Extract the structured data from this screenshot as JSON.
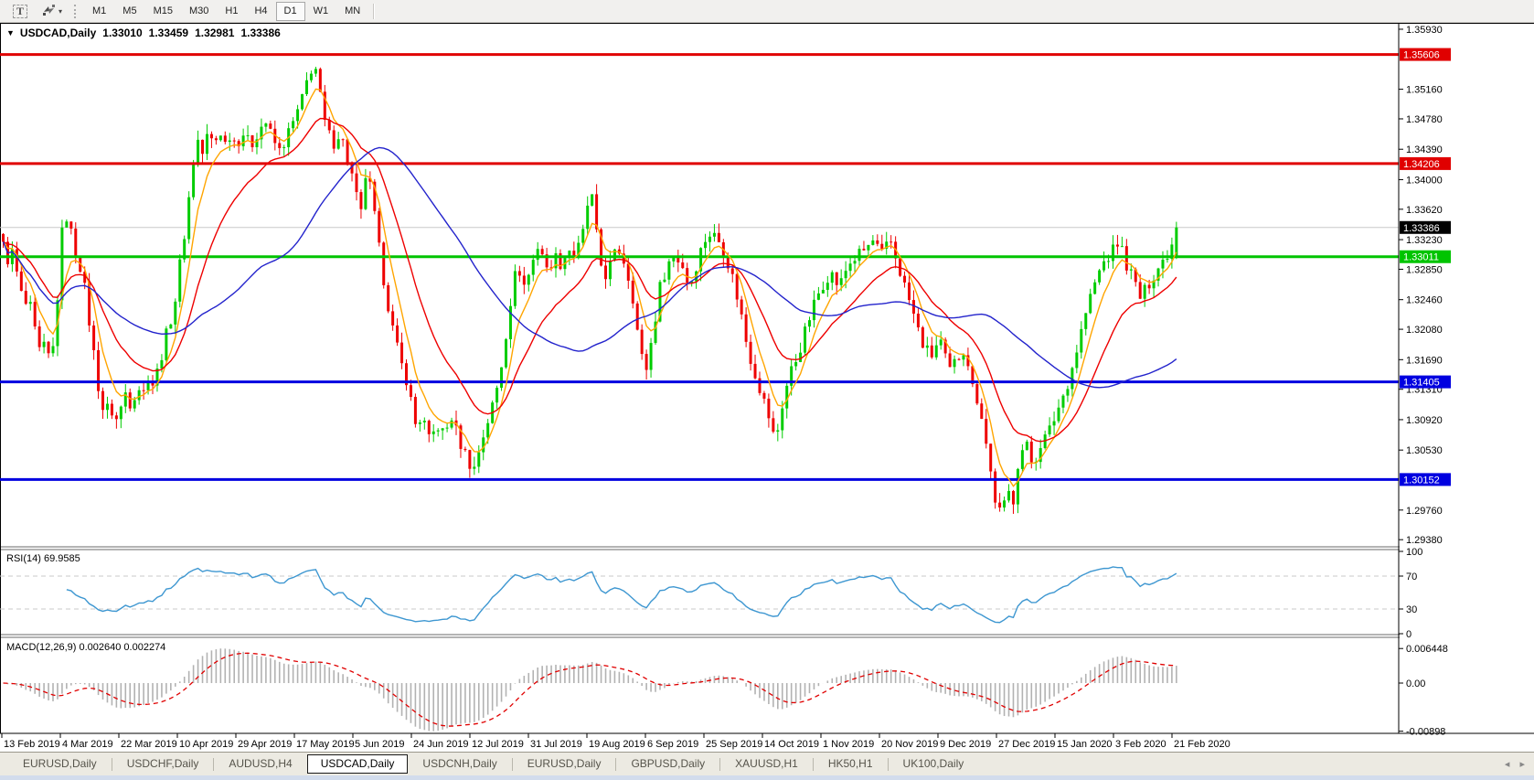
{
  "toolbar": {
    "text_tool_label": "T",
    "timeframes": [
      "M1",
      "M5",
      "M15",
      "M30",
      "H1",
      "H4",
      "D1",
      "W1",
      "MN"
    ],
    "active_timeframe": "D1"
  },
  "chart_window": {
    "title": {
      "dropdown_icon": "▼",
      "symbol": "USDCAD,Daily",
      "open": "1.33010",
      "high": "1.33459",
      "low": "1.32981",
      "close": "1.33386"
    }
  },
  "rsi_panel": {
    "label": "RSI(14)",
    "value": "69.9585",
    "axis_ticks": [
      "100",
      "70",
      "30",
      "0"
    ]
  },
  "macd_panel": {
    "label": "MACD(12,26,9)",
    "values": "0.002640 0.002274",
    "axis_ticks": [
      "0.006448",
      "0.00",
      "-0.00898"
    ]
  },
  "bottom_tabs": {
    "tabs": [
      "EURUSD,Daily",
      "USDCHF,Daily",
      "AUDUSD,H4",
      "USDCAD,Daily",
      "USDCNH,Daily",
      "EURUSD,Daily",
      "GBPUSD,Daily",
      "XAUUSD,H1",
      "HK50,H1",
      "UK100,Daily"
    ],
    "active_index": 3,
    "scroll_left": "◂",
    "scroll_right": "▸"
  },
  "colors": {
    "candle_up": "#00CC00",
    "candle_down": "#EE0000",
    "ma_fast": "#FFA500",
    "ma_medium": "#EE0000",
    "ma_slow": "#2323CC",
    "rsi_line": "#3E97D1",
    "rsi_levels": "#C8C8C8",
    "macd_histogram": "#B2B2B2",
    "macd_signal": "#E00000",
    "current_price_line": "#C8C8C8",
    "axis_text": "#000000"
  },
  "chart_data": {
    "type": "candlestick",
    "symbol": "USDCAD",
    "timeframe": "Daily",
    "candle_count": 260,
    "price_range": [
      1.293,
      1.36
    ],
    "last_candle": {
      "open": 1.3301,
      "high": 1.33459,
      "low": 1.32981,
      "close": 1.33386
    },
    "current_price": {
      "price": 1.33386,
      "label": "1.33386",
      "tag_color": "#000000"
    },
    "price_axis_ticks": [
      "1.35930",
      "1.35160",
      "1.34780",
      "1.34390",
      "1.34000",
      "1.33620",
      "1.33230",
      "1.32850",
      "1.32460",
      "1.32080",
      "1.31690",
      "1.31310",
      "1.30920",
      "1.30530",
      "1.29760",
      "1.29380"
    ],
    "horizontal_lines": [
      {
        "price": 1.35606,
        "label": "1.35606",
        "color": "#E00000"
      },
      {
        "price": 1.34206,
        "label": "1.34206",
        "color": "#E00000"
      },
      {
        "price": 1.33011,
        "label": "1.33011",
        "color": "#00C400"
      },
      {
        "price": 1.31405,
        "label": "1.31405",
        "color": "#0000E0"
      },
      {
        "price": 1.30152,
        "label": "1.30152",
        "color": "#0000E0"
      }
    ],
    "moving_averages": [
      {
        "name": "fast",
        "type": "ema",
        "period": 6,
        "color": "#FFA500"
      },
      {
        "name": "medium",
        "type": "ema",
        "period": 18,
        "color": "#EE0000"
      },
      {
        "name": "slow",
        "type": "sma",
        "period": 45,
        "color": "#2323CC"
      }
    ],
    "x_axis_dates": [
      "13 Feb 2019",
      "4 Mar 2019",
      "22 Mar 2019",
      "10 Apr 2019",
      "29 Apr 2019",
      "17 May 2019",
      "5 Jun 2019",
      "24 Jun 2019",
      "12 Jul 2019",
      "31 Jul 2019",
      "19 Aug 2019",
      "6 Sep 2019",
      "25 Sep 2019",
      "14 Oct 2019",
      "1 Nov 2019",
      "20 Nov 2019",
      "9 Dec 2019",
      "27 Dec 2019",
      "15 Jan 2020",
      "3 Feb 2020",
      "21 Feb 2020"
    ],
    "rsi": {
      "period": 14,
      "last_value": 69.9585,
      "levels": [
        70,
        30
      ],
      "scale": [
        0,
        100
      ]
    },
    "macd": {
      "fast": 12,
      "slow": 26,
      "signal": 9,
      "last_macd": 0.00264,
      "last_signal": 0.002274,
      "axis_max": 0.006448,
      "axis_min": -0.00898
    },
    "price_waypoints": [
      [
        2,
        1.332
      ],
      [
        8,
        1.3298
      ],
      [
        14,
        1.3306
      ],
      [
        20,
        1.327
      ],
      [
        26,
        1.3238
      ],
      [
        32,
        1.3242
      ],
      [
        38,
        1.3205
      ],
      [
        44,
        1.3175
      ],
      [
        50,
        1.3188
      ],
      [
        56,
        1.3158
      ],
      [
        62,
        1.3235
      ],
      [
        68,
        1.3332
      ],
      [
        74,
        1.3358
      ],
      [
        78,
        1.333
      ],
      [
        84,
        1.3302
      ],
      [
        90,
        1.3282
      ],
      [
        96,
        1.3232
      ],
      [
        102,
        1.3182
      ],
      [
        108,
        1.3132
      ],
      [
        114,
        1.3098
      ],
      [
        120,
        1.3112
      ],
      [
        126,
        1.3088
      ],
      [
        132,
        1.3106
      ],
      [
        138,
        1.313
      ],
      [
        144,
        1.3108
      ],
      [
        150,
        1.314
      ],
      [
        156,
        1.3122
      ],
      [
        162,
        1.315
      ],
      [
        168,
        1.3136
      ],
      [
        174,
        1.3162
      ],
      [
        180,
        1.3192
      ],
      [
        186,
        1.3218
      ],
      [
        192,
        1.3248
      ],
      [
        198,
        1.3302
      ],
      [
        204,
        1.3348
      ],
      [
        210,
        1.3412
      ],
      [
        216,
        1.3452
      ],
      [
        222,
        1.3432
      ],
      [
        228,
        1.3462
      ],
      [
        234,
        1.3442
      ],
      [
        240,
        1.3466
      ],
      [
        246,
        1.3446
      ],
      [
        252,
        1.346
      ],
      [
        258,
        1.3446
      ],
      [
        266,
        1.346
      ],
      [
        274,
        1.3442
      ],
      [
        282,
        1.3462
      ],
      [
        290,
        1.3476
      ],
      [
        298,
        1.3452
      ],
      [
        306,
        1.3436
      ],
      [
        314,
        1.3456
      ],
      [
        322,
        1.3476
      ],
      [
        330,
        1.35
      ],
      [
        338,
        1.3536
      ],
      [
        344,
        1.3552
      ],
      [
        350,
        1.3508
      ],
      [
        356,
        1.3468
      ],
      [
        364,
        1.3446
      ],
      [
        372,
        1.3462
      ],
      [
        380,
        1.3426
      ],
      [
        388,
        1.3392
      ],
      [
        394,
        1.3346
      ],
      [
        400,
        1.3406
      ],
      [
        406,
        1.3386
      ],
      [
        414,
        1.3316
      ],
      [
        422,
        1.3256
      ],
      [
        430,
        1.3206
      ],
      [
        438,
        1.3166
      ],
      [
        446,
        1.314
      ],
      [
        454,
        1.3086
      ],
      [
        462,
        1.3096
      ],
      [
        470,
        1.3062
      ],
      [
        478,
        1.3086
      ],
      [
        486,
        1.3072
      ],
      [
        494,
        1.3096
      ],
      [
        502,
        1.3066
      ],
      [
        510,
        1.3046
      ],
      [
        518,
        1.3026
      ],
      [
        526,
        1.3062
      ],
      [
        534,
        1.3092
      ],
      [
        542,
        1.3122
      ],
      [
        550,
        1.3172
      ],
      [
        558,
        1.3242
      ],
      [
        566,
        1.3292
      ],
      [
        574,
        1.3262
      ],
      [
        582,
        1.3292
      ],
      [
        590,
        1.3322
      ],
      [
        598,
        1.3282
      ],
      [
        606,
        1.3302
      ],
      [
        614,
        1.3292
      ],
      [
        622,
        1.3312
      ],
      [
        630,
        1.3302
      ],
      [
        638,
        1.3332
      ],
      [
        646,
        1.3392
      ],
      [
        652,
        1.3332
      ],
      [
        660,
        1.3272
      ],
      [
        668,
        1.3292
      ],
      [
        676,
        1.3312
      ],
      [
        684,
        1.3292
      ],
      [
        692,
        1.3252
      ],
      [
        700,
        1.3182
      ],
      [
        706,
        1.3152
      ],
      [
        714,
        1.3202
      ],
      [
        722,
        1.3262
      ],
      [
        730,
        1.3292
      ],
      [
        738,
        1.3302
      ],
      [
        746,
        1.3292
      ],
      [
        754,
        1.3262
      ],
      [
        762,
        1.3292
      ],
      [
        770,
        1.3322
      ],
      [
        778,
        1.3332
      ],
      [
        786,
        1.3322
      ],
      [
        794,
        1.3302
      ],
      [
        802,
        1.3272
      ],
      [
        810,
        1.3232
      ],
      [
        818,
        1.3182
      ],
      [
        826,
        1.3152
      ],
      [
        834,
        1.3122
      ],
      [
        842,
        1.3092
      ],
      [
        848,
        1.3062
      ],
      [
        856,
        1.3112
      ],
      [
        864,
        1.3152
      ],
      [
        872,
        1.3172
      ],
      [
        880,
        1.3202
      ],
      [
        888,
        1.3232
      ],
      [
        898,
        1.3262
      ],
      [
        908,
        1.3282
      ],
      [
        918,
        1.3262
      ],
      [
        928,
        1.3292
      ],
      [
        938,
        1.3302
      ],
      [
        948,
        1.3312
      ],
      [
        956,
        1.3322
      ],
      [
        964,
        1.3302
      ],
      [
        974,
        1.3322
      ],
      [
        982,
        1.3292
      ],
      [
        990,
        1.3262
      ],
      [
        998,
        1.3232
      ],
      [
        1008,
        1.3192
      ],
      [
        1018,
        1.3172
      ],
      [
        1028,
        1.3196
      ],
      [
        1038,
        1.3152
      ],
      [
        1048,
        1.3172
      ],
      [
        1056,
        1.3186
      ],
      [
        1064,
        1.3132
      ],
      [
        1072,
        1.3112
      ],
      [
        1080,
        1.3052
      ],
      [
        1088,
        1.2992
      ],
      [
        1096,
        1.2966
      ],
      [
        1102,
        1.3002
      ],
      [
        1108,
        1.2986
      ],
      [
        1114,
        1.3042
      ],
      [
        1122,
        1.3062
      ],
      [
        1130,
        1.3032
      ],
      [
        1138,
        1.3062
      ],
      [
        1146,
        1.3072
      ],
      [
        1156,
        1.3102
      ],
      [
        1166,
        1.3132
      ],
      [
        1176,
        1.3172
      ],
      [
        1186,
        1.3222
      ],
      [
        1196,
        1.3262
      ],
      [
        1206,
        1.3292
      ],
      [
        1216,
        1.3306
      ],
      [
        1224,
        1.3322
      ],
      [
        1232,
        1.3292
      ],
      [
        1240,
        1.3272
      ],
      [
        1248,
        1.3246
      ],
      [
        1256,
        1.3266
      ],
      [
        1264,
        1.3282
      ],
      [
        1272,
        1.3296
      ],
      [
        1280,
        1.3312
      ],
      [
        1288,
        1.3339
      ]
    ]
  }
}
